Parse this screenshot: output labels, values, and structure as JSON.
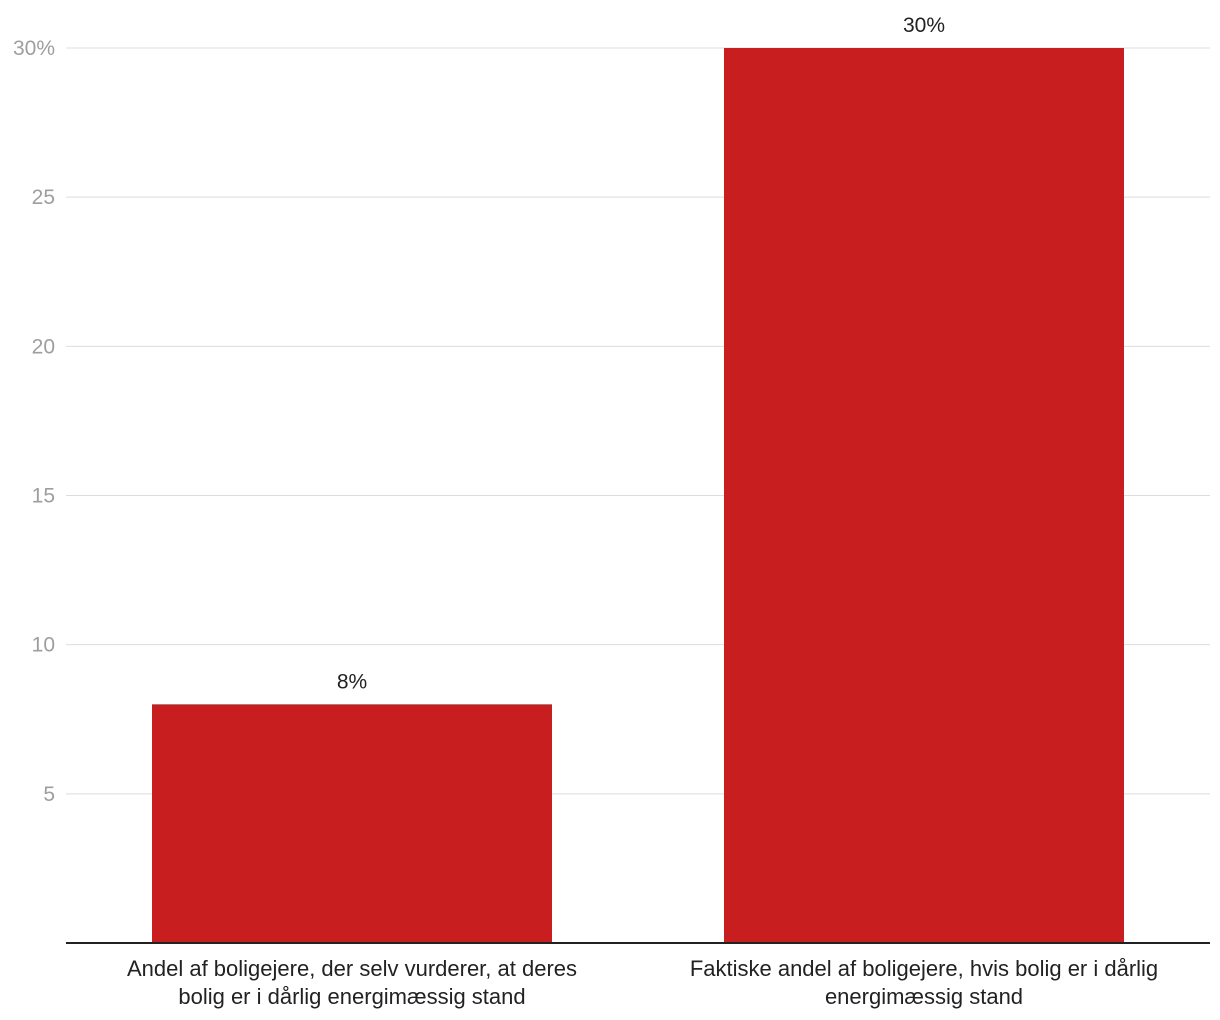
{
  "chart_data": {
    "type": "bar",
    "categories": [
      [
        "Andel af boligejere, der selv vurderer, at deres",
        "bolig er i dårlig energimæssig stand"
      ],
      [
        "Faktiske andel af boligejere, hvis bolig er i dårlig",
        "energimæssig stand"
      ]
    ],
    "values": [
      8,
      30
    ],
    "data_labels": [
      "8%",
      "30%"
    ],
    "yticks": [
      {
        "value": 5,
        "label": "5"
      },
      {
        "value": 10,
        "label": "10"
      },
      {
        "value": 15,
        "label": "15"
      },
      {
        "value": 20,
        "label": "20"
      },
      {
        "value": 25,
        "label": "25"
      },
      {
        "value": 30,
        "label": "30%"
      }
    ],
    "ylim": [
      0,
      30
    ],
    "grid": true,
    "bar_color": "#c91e1f",
    "title": "",
    "xlabel": "",
    "ylabel": ""
  }
}
